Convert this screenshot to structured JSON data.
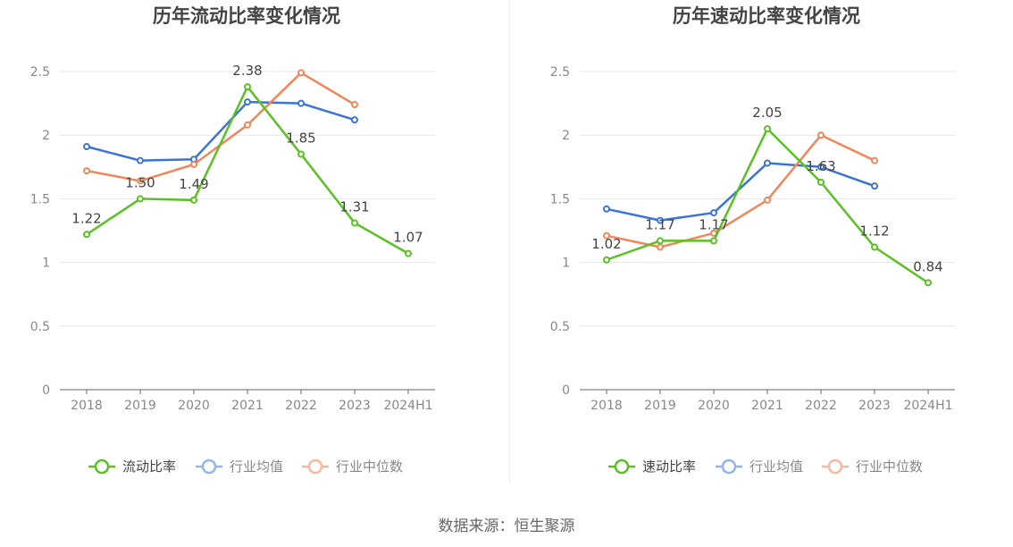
{
  "source_text": "数据来源：恒生聚源",
  "chart_data": [
    {
      "type": "line",
      "title": "历年流动比率变化情况",
      "categories": [
        "2018",
        "2019",
        "2020",
        "2021",
        "2022",
        "2023",
        "2024H1"
      ],
      "ylim": [
        0,
        2.5
      ],
      "yticks": [
        "0",
        "0.5",
        "1",
        "1.5",
        "2",
        "2.5"
      ],
      "grid": true,
      "legend_position": "bottom",
      "series": [
        {
          "name": "流动比率",
          "color": "#5ac124",
          "labeled": true,
          "values": [
            1.22,
            1.5,
            1.49,
            2.38,
            1.85,
            1.31,
            1.07
          ],
          "labels": [
            "1.22",
            "1.50",
            "1.49",
            "2.38",
            "1.85",
            "1.31",
            "1.07"
          ]
        },
        {
          "name": "行业均值",
          "color": "#3b74d6",
          "labeled": false,
          "values": [
            1.91,
            1.8,
            1.81,
            2.26,
            2.25,
            2.12,
            null
          ]
        },
        {
          "name": "行业中位数",
          "color": "#f0875a",
          "labeled": false,
          "values": [
            1.72,
            1.64,
            1.77,
            2.08,
            2.49,
            2.24,
            null
          ]
        }
      ]
    },
    {
      "type": "line",
      "title": "历年速动比率变化情况",
      "categories": [
        "2018",
        "2019",
        "2020",
        "2021",
        "2022",
        "2023",
        "2024H1"
      ],
      "ylim": [
        0,
        2.5
      ],
      "yticks": [
        "0",
        "0.5",
        "1",
        "1.5",
        "2",
        "2.5"
      ],
      "grid": true,
      "legend_position": "bottom",
      "series": [
        {
          "name": "速动比率",
          "color": "#5ac124",
          "labeled": true,
          "values": [
            1.02,
            1.17,
            1.17,
            2.05,
            1.63,
            1.12,
            0.84
          ],
          "labels": [
            "1.02",
            "1.17",
            "1.17",
            "2.05",
            "1.63",
            "1.12",
            "0.84"
          ]
        },
        {
          "name": "行业均值",
          "color": "#3b74d6",
          "labeled": false,
          "values": [
            1.42,
            1.33,
            1.39,
            1.78,
            1.75,
            1.6,
            null
          ]
        },
        {
          "name": "行业中位数",
          "color": "#f0875a",
          "labeled": false,
          "values": [
            1.21,
            1.12,
            1.23,
            1.49,
            2.0,
            1.8,
            null
          ]
        }
      ]
    }
  ]
}
